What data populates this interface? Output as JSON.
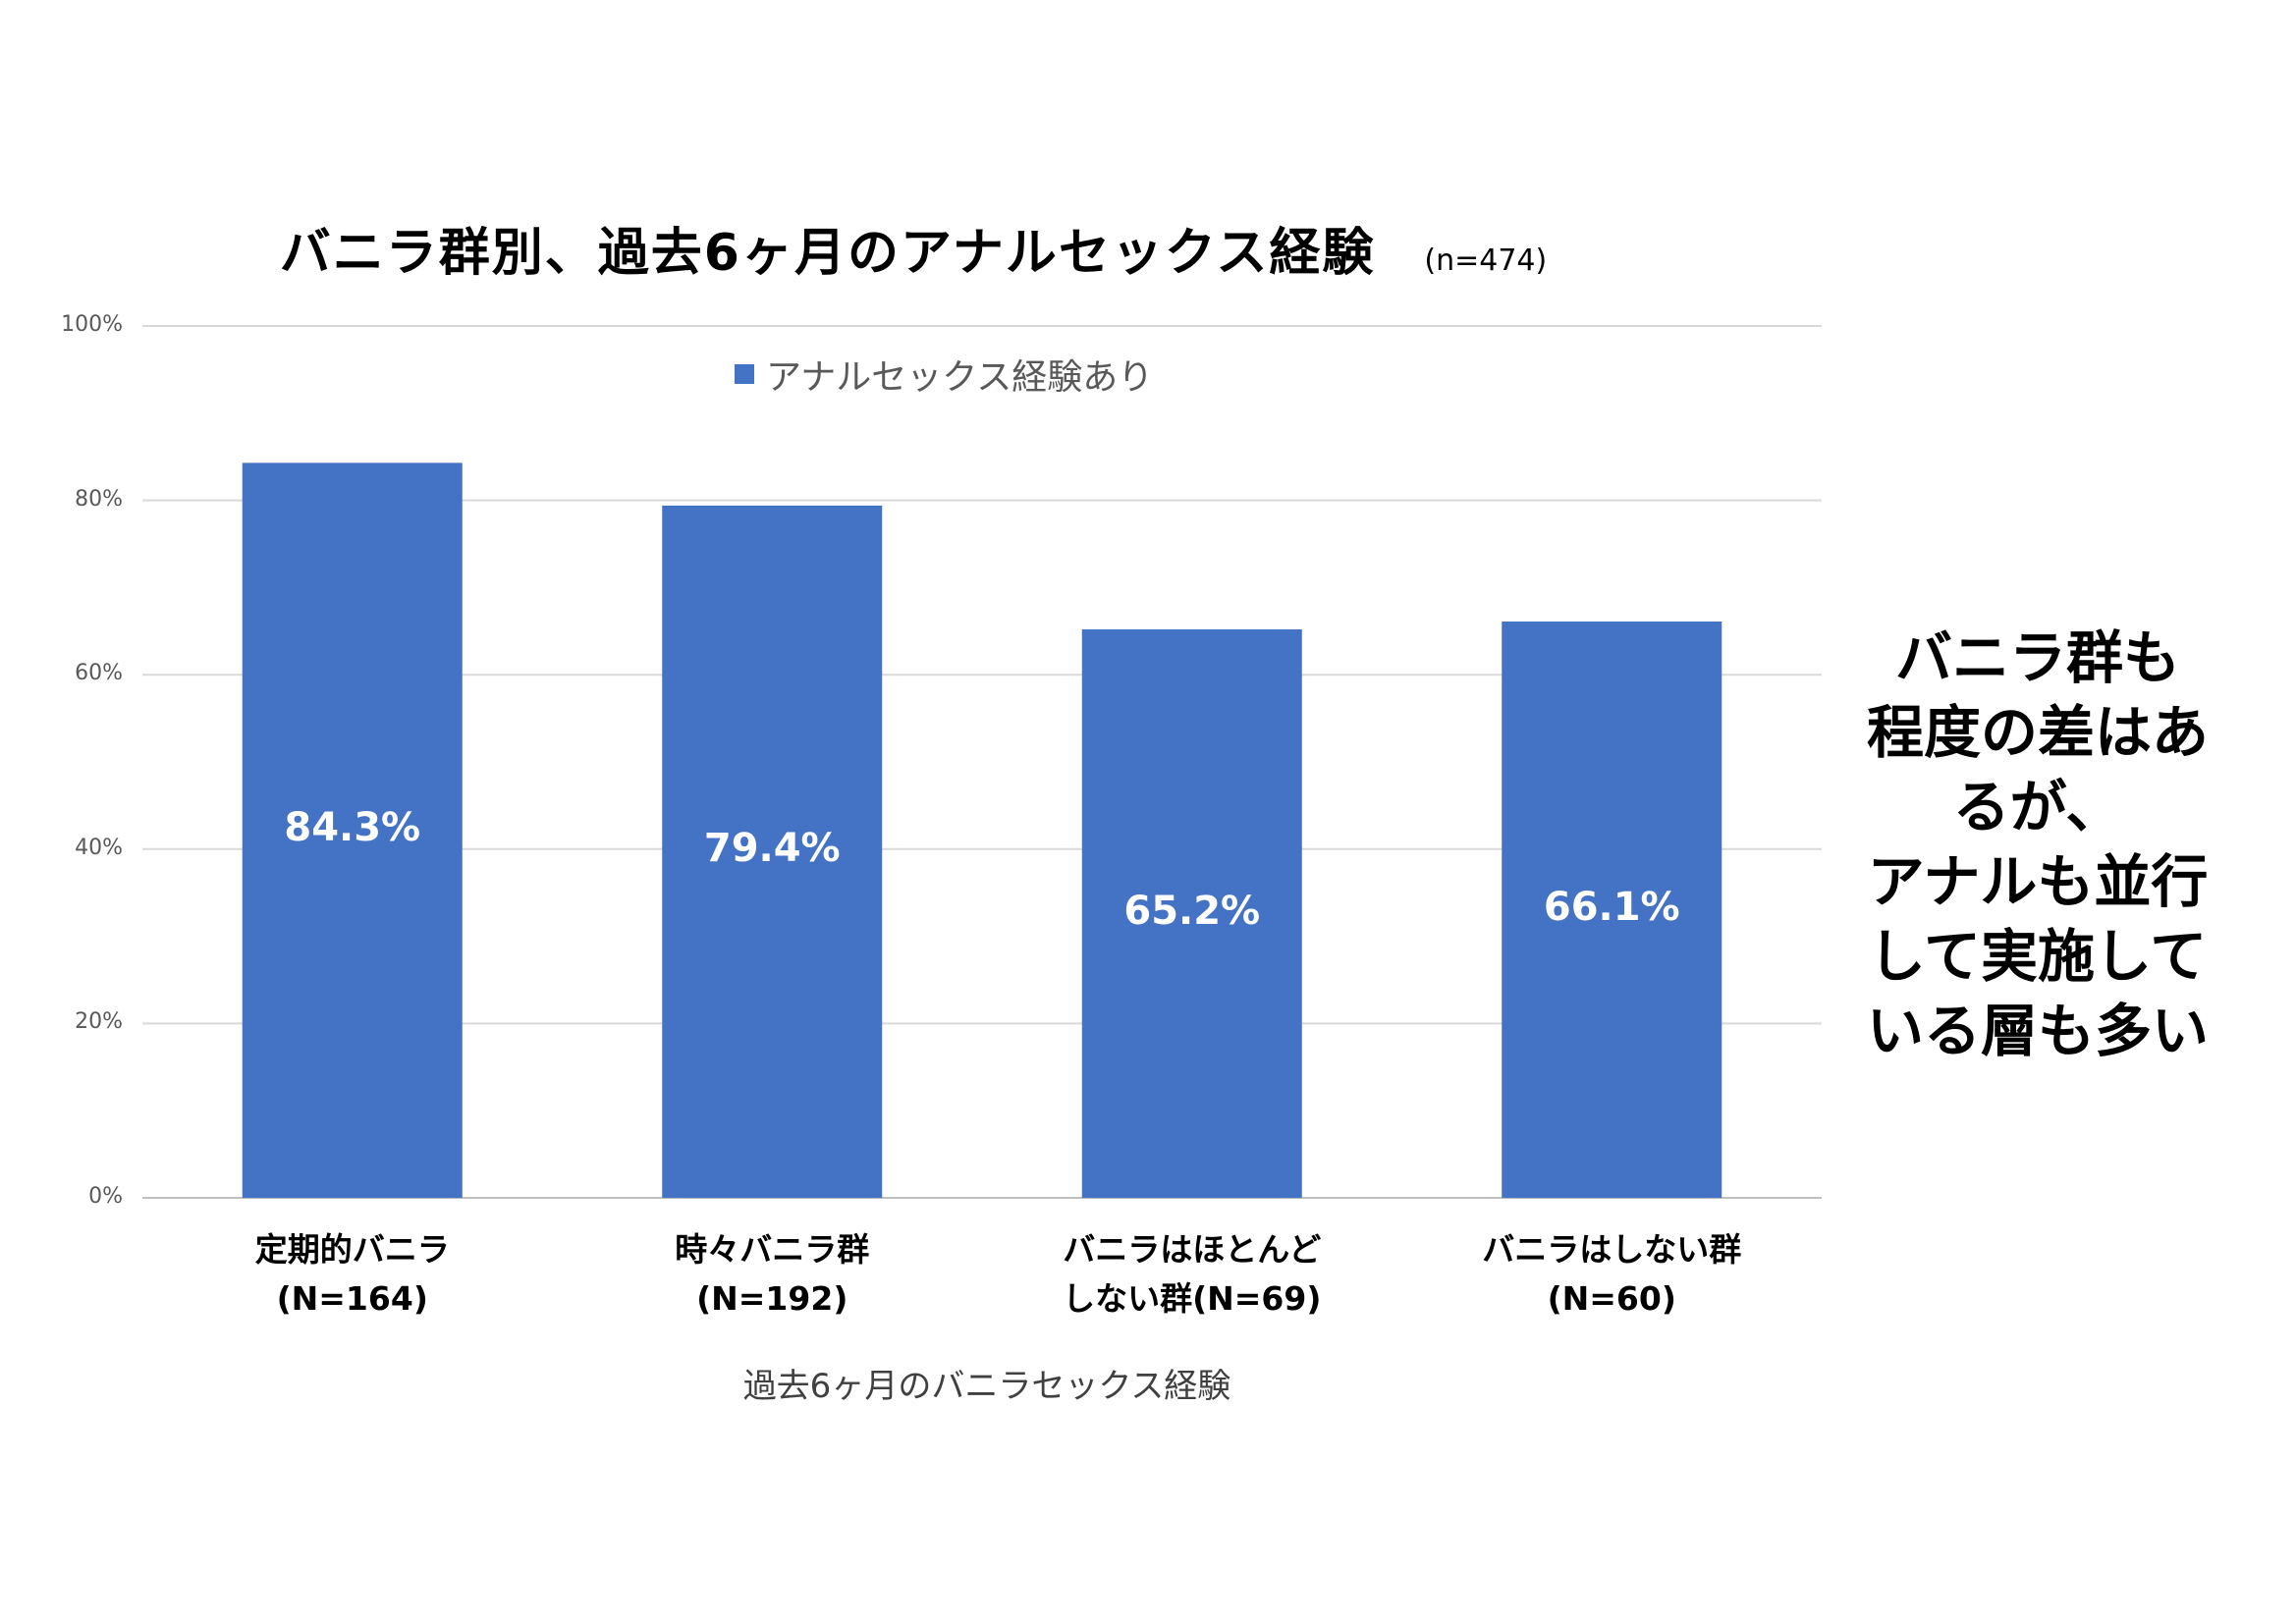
{
  "title": "バニラ群別、過去6ヶ月のアナルセックス経験",
  "sample_size": "(n=474)",
  "side_note": [
    "バニラ群も",
    "程度の差はあ",
    "るが、",
    "アナルも並行",
    "して実施して",
    "いる層も多い"
  ],
  "chart_data": {
    "type": "bar",
    "title": "バニラ群別、過去6ヶ月のアナルセックス経験",
    "xlabel": "過去6ヶ月のバニラセックス経験",
    "ylabel": "",
    "ylim": [
      0,
      100
    ],
    "yticks": [
      0,
      20,
      40,
      60,
      80,
      100
    ],
    "ytick_labels": [
      "0%",
      "20%",
      "40%",
      "60%",
      "80%",
      "100%"
    ],
    "grid": true,
    "legend_position": "top-center",
    "color": "#4472C4",
    "categories": [
      [
        "定期的バニラ",
        "(N=164)"
      ],
      [
        "時々バニラ群",
        "(N=192)"
      ],
      [
        "バニラはほとんど",
        "しない群(N=69)"
      ],
      [
        "バニラはしない群",
        "(N=60)"
      ]
    ],
    "series": [
      {
        "name": "アナルセックス経験あり",
        "values": [
          84.3,
          79.4,
          65.2,
          66.1
        ],
        "labels": [
          "84.3%",
          "79.4%",
          "65.2%",
          "66.1%"
        ]
      }
    ]
  }
}
